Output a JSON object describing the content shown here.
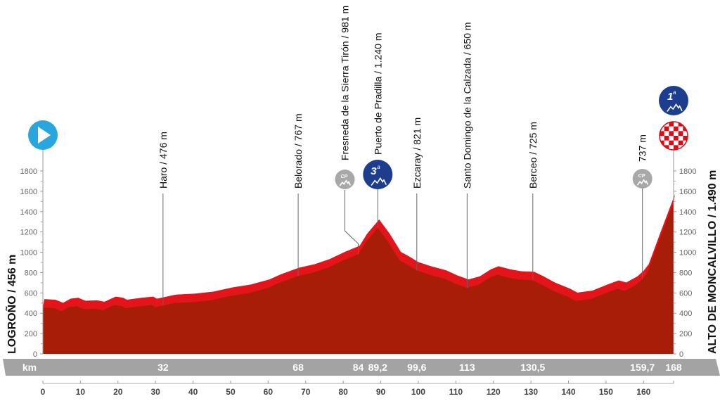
{
  "chart_data": {
    "type": "area",
    "xlabel": "km",
    "xlim": [
      0,
      168
    ],
    "ylim": [
      0,
      1800
    ],
    "x_ticks": [
      0,
      10,
      20,
      30,
      40,
      50,
      60,
      70,
      80,
      90,
      100,
      110,
      120,
      130,
      140,
      150,
      160
    ],
    "y_ticks": [
      0,
      200,
      400,
      600,
      800,
      1000,
      1200,
      1400,
      1600,
      1800
    ],
    "start_label": "LOGROÑO / 456 m",
    "finish_label": "ALTO DE MONCALVILLO / 1.490 m",
    "profile": [
      [
        0,
        456
      ],
      [
        3,
        450
      ],
      [
        5,
        420
      ],
      [
        7,
        460
      ],
      [
        9,
        470
      ],
      [
        11,
        440
      ],
      [
        14,
        445
      ],
      [
        16,
        430
      ],
      [
        19,
        480
      ],
      [
        21,
        470
      ],
      [
        22,
        450
      ],
      [
        26,
        470
      ],
      [
        29,
        480
      ],
      [
        30,
        460
      ],
      [
        32,
        476
      ],
      [
        35,
        500
      ],
      [
        40,
        510
      ],
      [
        45,
        530
      ],
      [
        50,
        570
      ],
      [
        55,
        600
      ],
      [
        60,
        650
      ],
      [
        63,
        700
      ],
      [
        68,
        767
      ],
      [
        72,
        800
      ],
      [
        76,
        850
      ],
      [
        80,
        920
      ],
      [
        84,
        981
      ],
      [
        86,
        1100
      ],
      [
        89.2,
        1240
      ],
      [
        92,
        1100
      ],
      [
        95,
        920
      ],
      [
        97,
        880
      ],
      [
        99.6,
        821
      ],
      [
        103,
        780
      ],
      [
        107,
        740
      ],
      [
        110,
        690
      ],
      [
        113,
        650
      ],
      [
        116,
        680
      ],
      [
        119,
        750
      ],
      [
        121,
        780
      ],
      [
        124,
        750
      ],
      [
        127,
        730
      ],
      [
        130.5,
        725
      ],
      [
        133,
        680
      ],
      [
        136,
        620
      ],
      [
        140,
        560
      ],
      [
        142,
        520
      ],
      [
        146,
        540
      ],
      [
        150,
        600
      ],
      [
        153,
        640
      ],
      [
        155,
        620
      ],
      [
        158,
        680
      ],
      [
        159.7,
        737
      ],
      [
        161,
        800
      ],
      [
        164,
        1100
      ],
      [
        168,
        1490
      ]
    ],
    "waypoints": [
      {
        "km": 32,
        "km_label": "32",
        "label": "Haro / 476 m",
        "elev": 476,
        "marker": ""
      },
      {
        "km": 68,
        "km_label": "68",
        "label": "Belorado / 767 m",
        "elev": 767,
        "marker": ""
      },
      {
        "km": 84,
        "km_label": "84",
        "label": "Fresneda de la Sierra Tirón / 981 m",
        "elev": 981,
        "marker": "cp"
      },
      {
        "km": 89.2,
        "km_label": "89,2",
        "label": "Puerto de Pradilla / 1.240 m",
        "elev": 1240,
        "marker": "cat",
        "cat": "3",
        "cat_sup": "a"
      },
      {
        "km": 99.6,
        "km_label": "99,6",
        "label": "Ezcaray / 821 m",
        "elev": 821,
        "marker": ""
      },
      {
        "km": 113,
        "km_label": "113",
        "label": "Santo Domingo de la Calzada / 650 m",
        "elev": 650,
        "marker": ""
      },
      {
        "km": 130.5,
        "km_label": "130,5",
        "label": "Berceo / 725 m",
        "elev": 725,
        "marker": ""
      },
      {
        "km": 159.7,
        "km_label": "159,7",
        "label": "737 m",
        "elev": 737,
        "marker": "cp"
      },
      {
        "km": 168,
        "km_label": "168",
        "label": "",
        "elev": 1490,
        "marker": "finish",
        "cat": "1",
        "cat_sup": "a"
      }
    ],
    "cp_text": "CP",
    "colors": {
      "profile_dark": "#a81d08",
      "profile_bright": "#e4141b",
      "band": "#a3a3a3",
      "start": "#2aa6df",
      "category": "#1d3d8e",
      "cp": "#a8a8a8"
    }
  }
}
